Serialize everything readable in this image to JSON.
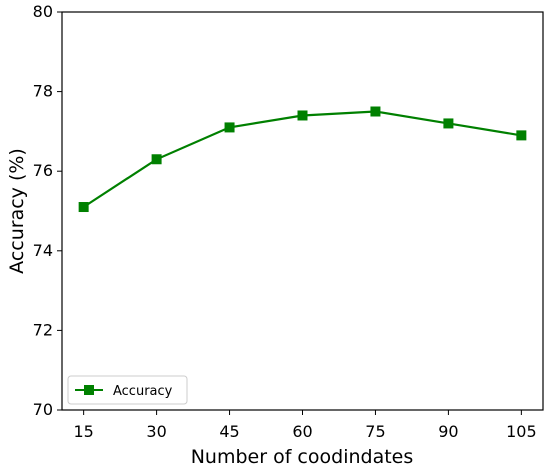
{
  "chart_data": {
    "type": "line",
    "title": "",
    "xlabel": "Number of coodindates",
    "ylabel": "Accuracy (%)",
    "x": [
      15,
      30,
      45,
      60,
      75,
      90,
      105
    ],
    "x_ticks": [
      "15",
      "30",
      "45",
      "60",
      "75",
      "90",
      "105"
    ],
    "y_ticks": [
      "70",
      "72",
      "74",
      "76",
      "78",
      "80"
    ],
    "ylim": [
      70,
      80
    ],
    "grid": false,
    "legend_position": "bottom-left",
    "series": [
      {
        "name": "Accuracy",
        "values": [
          75.1,
          76.3,
          77.1,
          77.4,
          77.5,
          77.2,
          76.9
        ],
        "color": "#008000",
        "marker": "square"
      }
    ]
  }
}
